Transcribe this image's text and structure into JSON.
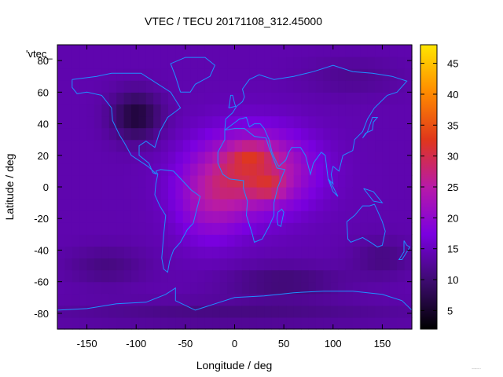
{
  "chart_data": {
    "type": "heatmap",
    "title": "VTEC / TECU 20171108_312.45000",
    "xlabel": "Longitude / deg",
    "ylabel": "Latitude / deg",
    "xlim": [
      -180,
      180
    ],
    "ylim": [
      -90,
      90
    ],
    "x_ticks": [
      -150,
      -100,
      -50,
      0,
      50,
      100,
      150
    ],
    "y_ticks": [
      -80,
      -60,
      -40,
      -20,
      0,
      20,
      40,
      60,
      80
    ],
    "colorbar": {
      "range": [
        2,
        48
      ],
      "ticks": [
        5,
        10,
        15,
        20,
        25,
        30,
        35,
        40,
        45
      ],
      "stops": [
        "#000000",
        "#3c0b6e",
        "#7a00e0",
        "#b81aa8",
        "#e0371b",
        "#ff8b00",
        "#ffe600"
      ]
    },
    "colorbar_ticks_shown": "5 10 15 20 25 30 35 40 45",
    "legend_entry": "'vtec_",
    "grid": false,
    "coastline_color": "#1e90ff",
    "background_level": 14,
    "features": [
      {
        "lon": 20,
        "lat": 10,
        "sx": 55,
        "sy": 25,
        "amp": 15
      },
      {
        "lon": -25,
        "lat": -10,
        "sx": 35,
        "sy": 25,
        "amp": 7
      },
      {
        "lon": 15,
        "lat": 20,
        "sx": 20,
        "sy": 8,
        "amp": 5
      },
      {
        "lon": 35,
        "lat": 0,
        "sx": 15,
        "sy": 6,
        "amp": 6
      },
      {
        "lon": -100,
        "lat": 45,
        "sx": 25,
        "sy": 15,
        "amp": -8
      },
      {
        "lon": -130,
        "lat": -50,
        "sx": 40,
        "sy": 12,
        "amp": -3
      },
      {
        "lon": 150,
        "lat": -45,
        "sx": 30,
        "sy": 12,
        "amp": -3
      },
      {
        "lon": 50,
        "lat": -60,
        "sx": 60,
        "sy": 10,
        "amp": -4
      },
      {
        "lon": 0,
        "lat": -80,
        "sx": 180,
        "sy": 8,
        "amp": -3
      },
      {
        "lon": 120,
        "lat": 70,
        "sx": 50,
        "sy": 12,
        "amp": -2
      }
    ]
  }
}
